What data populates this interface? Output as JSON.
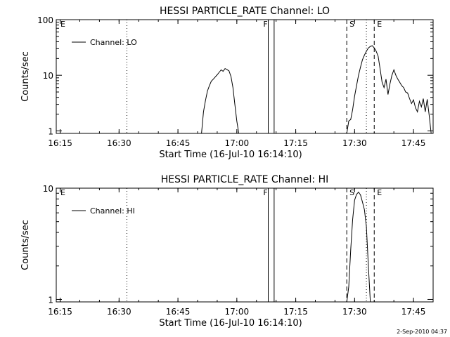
{
  "timestamp": "2-Sep-2010 04:37",
  "chart_data": [
    {
      "type": "line",
      "title": "HESSI PARTICLE_RATE Channel: LO",
      "xlabel": "Start Time (16-Jul-10 16:14:10)",
      "ylabel": "Counts/sec",
      "y_scale": "log",
      "ylim": [
        0.9,
        100
      ],
      "xlim_minutes_after_1614": [
        0,
        96
      ],
      "x_ticks": [
        "16:15",
        "16:30",
        "16:45",
        "17:00",
        "17:15",
        "17:30",
        "17:45"
      ],
      "y_ticks": [
        "1",
        "10",
        "100"
      ],
      "legend": {
        "entry": "Channel: LO",
        "placement": "top-left"
      },
      "markers": [
        {
          "label": "E",
          "time": "16:14",
          "style": "none"
        },
        {
          "label": "",
          "time": "16:32",
          "style": "dotted"
        },
        {
          "label": "F",
          "time": "17:08",
          "style": "solid"
        },
        {
          "label": "",
          "time": "17:09.5",
          "style": "solid"
        },
        {
          "label": "S",
          "time": "17:28",
          "style": "dashed"
        },
        {
          "label": "",
          "time": "17:33",
          "style": "dotted"
        },
        {
          "label": "E",
          "time": "17:35",
          "style": "dashed"
        },
        {
          "label": "",
          "time": "17:50",
          "style": "dotted"
        }
      ],
      "series": [
        {
          "name": "Channel: LO",
          "segments": [
            {
              "x": [
                "16:51",
                "16:51.5",
                "16:52",
                "16:52.5",
                "16:53",
                "16:53.5",
                "16:54",
                "16:54.5",
                "16:55",
                "16:55.5",
                "16:56",
                "16:56.5",
                "16:57",
                "16:57.5",
                "16:58",
                "16:58.5",
                "16:59",
                "16:59.5",
                "17:00",
                "17:00.5"
              ],
              "y": [
                0.9,
                2.2,
                3.5,
                5.2,
                6.5,
                7.8,
                8.5,
                9.3,
                10.2,
                11.3,
                12.5,
                11.8,
                13.2,
                12.6,
                12.0,
                9.5,
                6.0,
                3.0,
                1.5,
                0.9
              ]
            },
            {
              "x": [
                "17:28",
                "17:28.5",
                "17:29",
                "17:29.5",
                "17:30",
                "17:30.5",
                "17:31",
                "17:31.5",
                "17:32",
                "17:32.5",
                "17:33",
                "17:33.5",
                "17:34",
                "17:34.5",
                "17:35",
                "17:35.5",
                "17:36",
                "17:36.5",
                "17:37",
                "17:37.5",
                "17:38",
                "17:38.5",
                "17:39",
                "17:39.5",
                "17:40",
                "17:40.5",
                "17:41",
                "17:41.5",
                "17:42",
                "17:42.5",
                "17:43",
                "17:43.5",
                "17:44",
                "17:44.5",
                "17:45",
                "17:45.5",
                "17:46",
                "17:46.5",
                "17:47",
                "17:47.5",
                "17:48",
                "17:48.5",
                "17:49",
                "17:49.5"
              ],
              "y": [
                0.9,
                1.5,
                1.6,
                2.4,
                4.2,
                6.5,
                10,
                14,
                19,
                23,
                27,
                31,
                33,
                34,
                31,
                27,
                22,
                13,
                7.5,
                6,
                8.5,
                4.5,
                7,
                10,
                12.5,
                10,
                8.5,
                7.5,
                6.5,
                6,
                5,
                4.8,
                3.8,
                3.1,
                3.6,
                2.6,
                2.2,
                3.4,
                2.7,
                3.8,
                2.2,
                3.7,
                1.9,
                0.9
              ]
            }
          ]
        }
      ]
    },
    {
      "type": "line",
      "title": "HESSI PARTICLE_RATE Channel: HI",
      "xlabel": "Start Time (16-Jul-10 16:14:10)",
      "ylabel": "Counts/sec",
      "y_scale": "log",
      "ylim": [
        0.95,
        10
      ],
      "xlim_minutes_after_1614": [
        0,
        96
      ],
      "x_ticks": [
        "16:15",
        "16:30",
        "16:45",
        "17:00",
        "17:15",
        "17:30",
        "17:45"
      ],
      "y_ticks": [
        "1",
        "10"
      ],
      "legend": {
        "entry": "Channel: HI",
        "placement": "top-left"
      },
      "markers": [
        {
          "label": "E",
          "time": "16:14",
          "style": "none"
        },
        {
          "label": "",
          "time": "16:32",
          "style": "dotted"
        },
        {
          "label": "F",
          "time": "17:08",
          "style": "solid"
        },
        {
          "label": "",
          "time": "17:09.5",
          "style": "solid"
        },
        {
          "label": "S",
          "time": "17:28",
          "style": "dashed"
        },
        {
          "label": "",
          "time": "17:33",
          "style": "dotted"
        },
        {
          "label": "E",
          "time": "17:35",
          "style": "dashed"
        },
        {
          "label": "",
          "time": "17:50",
          "style": "dotted"
        }
      ],
      "series": [
        {
          "name": "Channel: HI",
          "segments": [
            {
              "x": [
                "17:28",
                "17:28.5",
                "17:29",
                "17:29.5",
                "17:30",
                "17:30.5",
                "17:31",
                "17:31.5",
                "17:32",
                "17:32.5",
                "17:33",
                "17:33.5",
                "17:34"
              ],
              "y": [
                0.95,
                1.3,
                2.8,
                5.2,
                7.8,
                8.8,
                9.2,
                8.7,
                7.5,
                6.4,
                4.5,
                2.0,
                0.95
              ]
            }
          ]
        }
      ]
    }
  ]
}
